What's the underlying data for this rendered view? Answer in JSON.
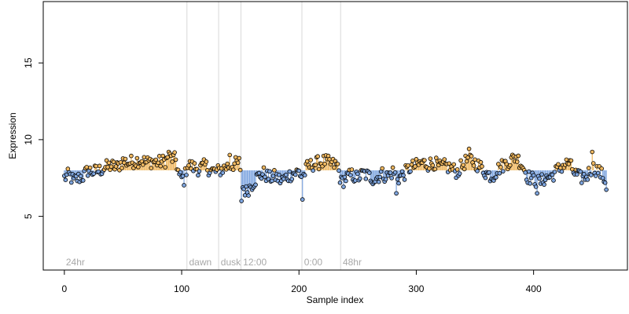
{
  "chart_data": {
    "type": "scatter",
    "xlabel": "Sample index",
    "ylabel": "Expression",
    "xlim": [
      -18,
      480
    ],
    "ylim": [
      1.5,
      19
    ],
    "x_ticks": [
      0,
      100,
      200,
      300,
      400
    ],
    "y_ticks": [
      5,
      10,
      15
    ],
    "grid": false,
    "baseline": 8.0,
    "colors": {
      "above": "#f0b860",
      "below": "#7fa6e0",
      "separator": "#d8d8d8",
      "segment_label": "#a8a8a8",
      "point_edge": "#000000"
    },
    "segments": [
      {
        "label": "24hr",
        "start": 0
      },
      {
        "label": "dawn",
        "start": 105
      },
      {
        "label": "dusk",
        "start": 132
      },
      {
        "label": "12:00",
        "start": 151
      },
      {
        "label": "0:00",
        "start": 203
      },
      {
        "label": "48hr",
        "start": 236
      }
    ],
    "anchors": [
      [
        0,
        7.5
      ],
      [
        4,
        7.7
      ],
      [
        8,
        7.3
      ],
      [
        12,
        7.5
      ],
      [
        16,
        7.6
      ],
      [
        20,
        8.0
      ],
      [
        25,
        7.9
      ],
      [
        30,
        8.0
      ],
      [
        35,
        8.2
      ],
      [
        40,
        8.3
      ],
      [
        45,
        8.2
      ],
      [
        50,
        8.6
      ],
      [
        55,
        8.5
      ],
      [
        60,
        8.6
      ],
      [
        65,
        8.7
      ],
      [
        70,
        8.5
      ],
      [
        75,
        8.6
      ],
      [
        80,
        8.5
      ],
      [
        85,
        8.6
      ],
      [
        90,
        8.8
      ],
      [
        95,
        8.7
      ],
      [
        98,
        7.6
      ],
      [
        102,
        7.4
      ],
      [
        105,
        8.4
      ],
      [
        110,
        8.2
      ],
      [
        115,
        8.1
      ],
      [
        120,
        8.3
      ],
      [
        125,
        8.0
      ],
      [
        130,
        7.9
      ],
      [
        135,
        8.1
      ],
      [
        140,
        8.3
      ],
      [
        145,
        8.4
      ],
      [
        149,
        8.5
      ],
      [
        151,
        7.0
      ],
      [
        155,
        6.6
      ],
      [
        160,
        7.1
      ],
      [
        165,
        7.6
      ],
      [
        170,
        7.8
      ],
      [
        175,
        7.5
      ],
      [
        180,
        7.6
      ],
      [
        185,
        7.3
      ],
      [
        190,
        7.6
      ],
      [
        195,
        7.8
      ],
      [
        200,
        7.9
      ],
      [
        203,
        7.5
      ],
      [
        207,
        8.2
      ],
      [
        212,
        8.4
      ],
      [
        217,
        8.5
      ],
      [
        222,
        8.6
      ],
      [
        228,
        8.4
      ],
      [
        233,
        8.3
      ],
      [
        236,
        7.2
      ],
      [
        240,
        7.5
      ],
      [
        245,
        7.7
      ],
      [
        250,
        7.5
      ],
      [
        255,
        7.8
      ],
      [
        260,
        7.6
      ],
      [
        265,
        7.4
      ],
      [
        270,
        7.8
      ],
      [
        275,
        7.6
      ],
      [
        280,
        7.9
      ],
      [
        285,
        7.5
      ],
      [
        290,
        7.8
      ],
      [
        295,
        8.2
      ],
      [
        300,
        8.3
      ],
      [
        305,
        8.5
      ],
      [
        310,
        8.4
      ],
      [
        315,
        8.5
      ],
      [
        320,
        8.2
      ],
      [
        325,
        8.3
      ],
      [
        330,
        8.1
      ],
      [
        335,
        7.9
      ],
      [
        340,
        8.4
      ],
      [
        345,
        8.8
      ],
      [
        350,
        8.5
      ],
      [
        355,
        8.2
      ],
      [
        360,
        7.8
      ],
      [
        365,
        7.6
      ],
      [
        370,
        8.1
      ],
      [
        375,
        8.4
      ],
      [
        380,
        8.6
      ],
      [
        385,
        8.9
      ],
      [
        390,
        8.4
      ],
      [
        395,
        7.6
      ],
      [
        400,
        7.4
      ],
      [
        405,
        7.2
      ],
      [
        410,
        7.5
      ],
      [
        415,
        7.6
      ],
      [
        420,
        8.0
      ],
      [
        425,
        8.3
      ],
      [
        430,
        8.5
      ],
      [
        435,
        7.8
      ],
      [
        440,
        7.5
      ],
      [
        445,
        7.6
      ],
      [
        450,
        8.2
      ],
      [
        455,
        8.0
      ],
      [
        460,
        7.5
      ],
      [
        462,
        7.0
      ]
    ],
    "n_points": 463,
    "extremes": [
      [
        151,
        6.0
      ],
      [
        203,
        6.1
      ],
      [
        283,
        6.5
      ],
      [
        403,
        6.5
      ],
      [
        345,
        9.4
      ],
      [
        450,
        9.2
      ],
      [
        141,
        9.0
      ],
      [
        89,
        9.2
      ]
    ]
  }
}
